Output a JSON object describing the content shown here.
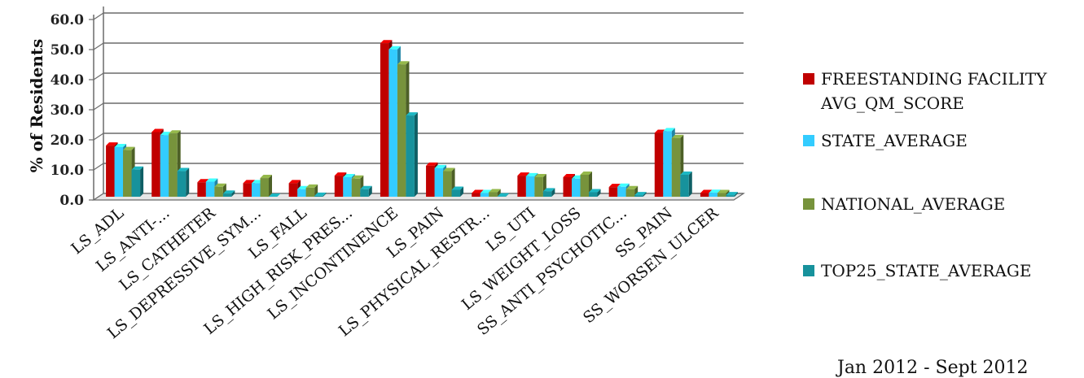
{
  "chart_data": {
    "type": "bar",
    "ylabel": "% of Residents",
    "ylim": [
      0,
      60
    ],
    "yticks": [
      "0.0",
      "10.0",
      "20.0",
      "30.0",
      "40.0",
      "50.0",
      "60.0"
    ],
    "grid": true,
    "legend_position": "right",
    "categories": [
      "LS_ADL",
      "LS_ANTI-...",
      "LS_CATHETER",
      "LS_DEPRESSIVE_SYM...",
      "LS_FALL",
      "LS_HIGH_RISK_PRES...",
      "LS_INCONTINENCE",
      "LS_PAIN",
      "LS_PHYSICAL_RESTR...",
      "LS_UTI",
      "LS_WEIGHT_LOSS",
      "SS_ANTI_PSYCHOTIC...",
      "SS_PAIN",
      "SS_WORSEN_ULCER"
    ],
    "series": [
      {
        "name": "FREESTANDING FACILITY AVG_QM_SCORE",
        "color": "#C00000",
        "values": [
          17.0,
          21.5,
          4.8,
          4.5,
          4.5,
          7.0,
          51.0,
          10.3,
          1.2,
          7.0,
          6.5,
          3.2,
          21.2,
          1.2
        ]
      },
      {
        "name": "STATE_AVERAGE",
        "color": "#33CCFF",
        "values": [
          16.5,
          20.5,
          5.0,
          4.5,
          2.5,
          6.5,
          49.0,
          9.5,
          1.2,
          6.8,
          6.0,
          3.3,
          21.8,
          1.3
        ]
      },
      {
        "name": "NATIONAL_AVERAGE",
        "color": "#77933C",
        "values": [
          15.5,
          21.0,
          3.3,
          6.2,
          3.0,
          6.0,
          44.0,
          8.5,
          1.5,
          6.5,
          7.3,
          2.5,
          19.5,
          1.2
        ]
      },
      {
        "name": "TOP25_STATE_AVERAGE",
        "color": "#17929C",
        "values": [
          9.0,
          8.5,
          1.0,
          0.0,
          0.3,
          2.5,
          27.0,
          2.3,
          0.1,
          1.8,
          1.5,
          0.5,
          7.3,
          0.5
        ]
      }
    ]
  },
  "legend": {
    "items": [
      {
        "label": "FREESTANDING FACILITY AVG_QM_SCORE",
        "color": "#C00000"
      },
      {
        "label": "STATE_AVERAGE",
        "color": "#33CCFF"
      },
      {
        "label": "NATIONAL_AVERAGE",
        "color": "#77933C"
      },
      {
        "label": "TOP25_STATE_AVERAGE",
        "color": "#17929C"
      }
    ]
  },
  "footnote": "Jan 2012 - Sept 2012"
}
